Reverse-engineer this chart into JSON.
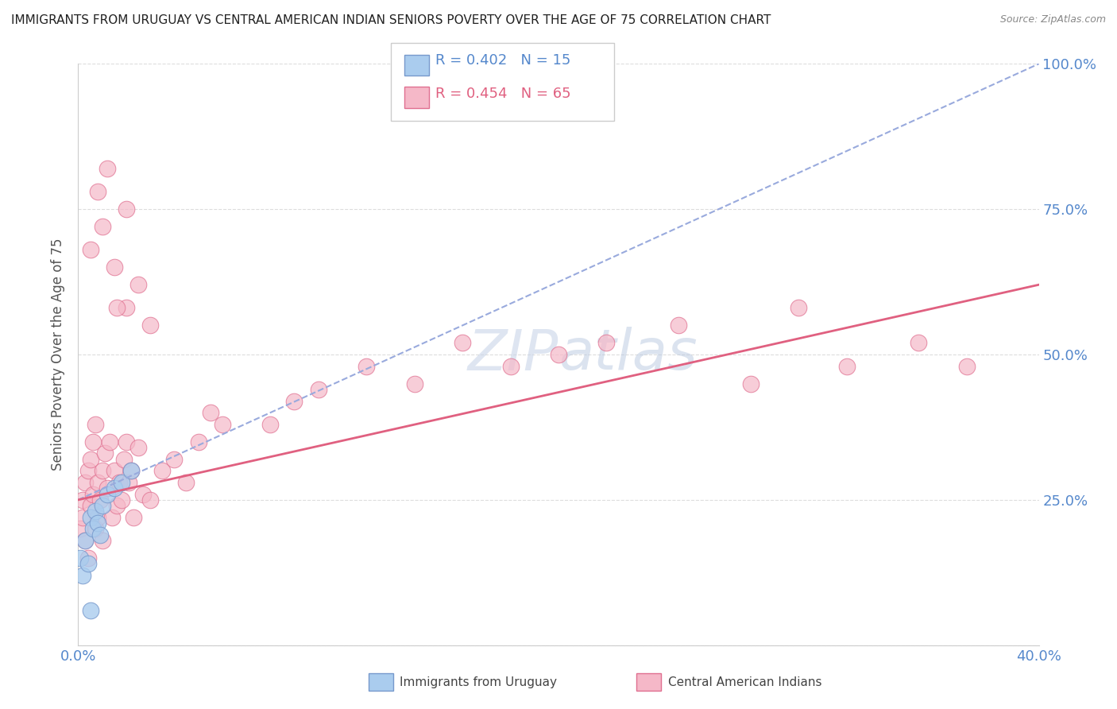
{
  "title": "IMMIGRANTS FROM URUGUAY VS CENTRAL AMERICAN INDIAN SENIORS POVERTY OVER THE AGE OF 75 CORRELATION CHART",
  "source": "Source: ZipAtlas.com",
  "ylabel": "Seniors Poverty Over the Age of 75",
  "xlim": [
    0.0,
    0.4
  ],
  "ylim": [
    0.0,
    1.0
  ],
  "ytick_positions": [
    0.0,
    0.25,
    0.5,
    0.75,
    1.0
  ],
  "ytick_labels": [
    "",
    "25.0%",
    "50.0%",
    "75.0%",
    "100.0%"
  ],
  "xtick_positions": [
    0.0,
    0.05,
    0.1,
    0.15,
    0.2,
    0.25,
    0.3,
    0.35,
    0.4
  ],
  "xtick_labels": [
    "0.0%",
    "",
    "",
    "",
    "",
    "",
    "",
    "",
    "40.0%"
  ],
  "uruguay_color": "#aaccee",
  "uruguay_edge_color": "#7799cc",
  "cam_indian_color": "#f5b8c8",
  "cam_indian_edge_color": "#e07090",
  "uruguay_R": 0.402,
  "uruguay_N": 15,
  "cam_indian_R": 0.454,
  "cam_indian_N": 65,
  "background_color": "#ffffff",
  "grid_color": "#dddddd",
  "uruguay_trend_color": "#99aadd",
  "cam_trend_color": "#e06080",
  "watermark_color": "#d0d8e8",
  "uruguay_x": [
    0.001,
    0.002,
    0.003,
    0.004,
    0.005,
    0.006,
    0.007,
    0.008,
    0.009,
    0.01,
    0.012,
    0.015,
    0.018,
    0.022,
    0.005
  ],
  "uruguay_y": [
    0.15,
    0.12,
    0.18,
    0.14,
    0.22,
    0.2,
    0.23,
    0.21,
    0.19,
    0.24,
    0.26,
    0.27,
    0.28,
    0.3,
    0.06
  ],
  "cam_x": [
    0.001,
    0.002,
    0.002,
    0.003,
    0.003,
    0.004,
    0.004,
    0.005,
    0.005,
    0.006,
    0.006,
    0.007,
    0.007,
    0.008,
    0.008,
    0.009,
    0.01,
    0.01,
    0.011,
    0.012,
    0.013,
    0.014,
    0.015,
    0.016,
    0.017,
    0.018,
    0.019,
    0.02,
    0.021,
    0.022,
    0.023,
    0.025,
    0.027,
    0.03,
    0.035,
    0.04,
    0.045,
    0.05,
    0.055,
    0.06,
    0.08,
    0.09,
    0.1,
    0.12,
    0.14,
    0.16,
    0.18,
    0.2,
    0.22,
    0.25,
    0.28,
    0.3,
    0.32,
    0.35,
    0.37,
    0.005,
    0.01,
    0.015,
    0.02,
    0.025,
    0.03,
    0.008,
    0.012,
    0.016,
    0.02
  ],
  "cam_y": [
    0.2,
    0.22,
    0.25,
    0.28,
    0.18,
    0.3,
    0.15,
    0.32,
    0.24,
    0.35,
    0.26,
    0.38,
    0.2,
    0.28,
    0.22,
    0.25,
    0.3,
    0.18,
    0.33,
    0.27,
    0.35,
    0.22,
    0.3,
    0.24,
    0.28,
    0.25,
    0.32,
    0.35,
    0.28,
    0.3,
    0.22,
    0.34,
    0.26,
    0.25,
    0.3,
    0.32,
    0.28,
    0.35,
    0.4,
    0.38,
    0.38,
    0.42,
    0.44,
    0.48,
    0.45,
    0.52,
    0.48,
    0.5,
    0.52,
    0.55,
    0.45,
    0.58,
    0.48,
    0.52,
    0.48,
    0.68,
    0.72,
    0.65,
    0.58,
    0.62,
    0.55,
    0.78,
    0.82,
    0.58,
    0.75
  ]
}
